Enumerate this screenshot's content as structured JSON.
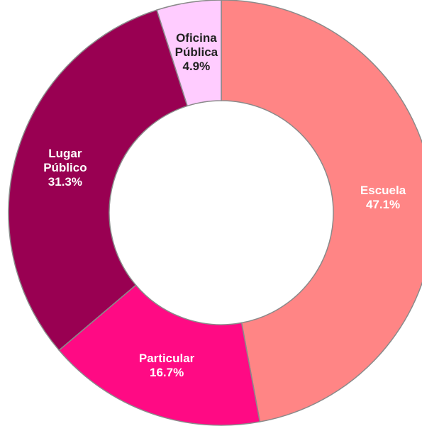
{
  "chart_data": {
    "type": "donut",
    "categories": [
      "Escuela",
      "Particular",
      "Lugar Público",
      "Oficina Pública"
    ],
    "values": [
      47.1,
      16.7,
      31.3,
      4.9
    ],
    "value_labels": [
      "47.1%",
      "16.7%",
      "31.3%",
      "4.9%"
    ],
    "colors": [
      "#ff8585",
      "#ff0a84",
      "#990052",
      "#ffccff"
    ]
  }
}
